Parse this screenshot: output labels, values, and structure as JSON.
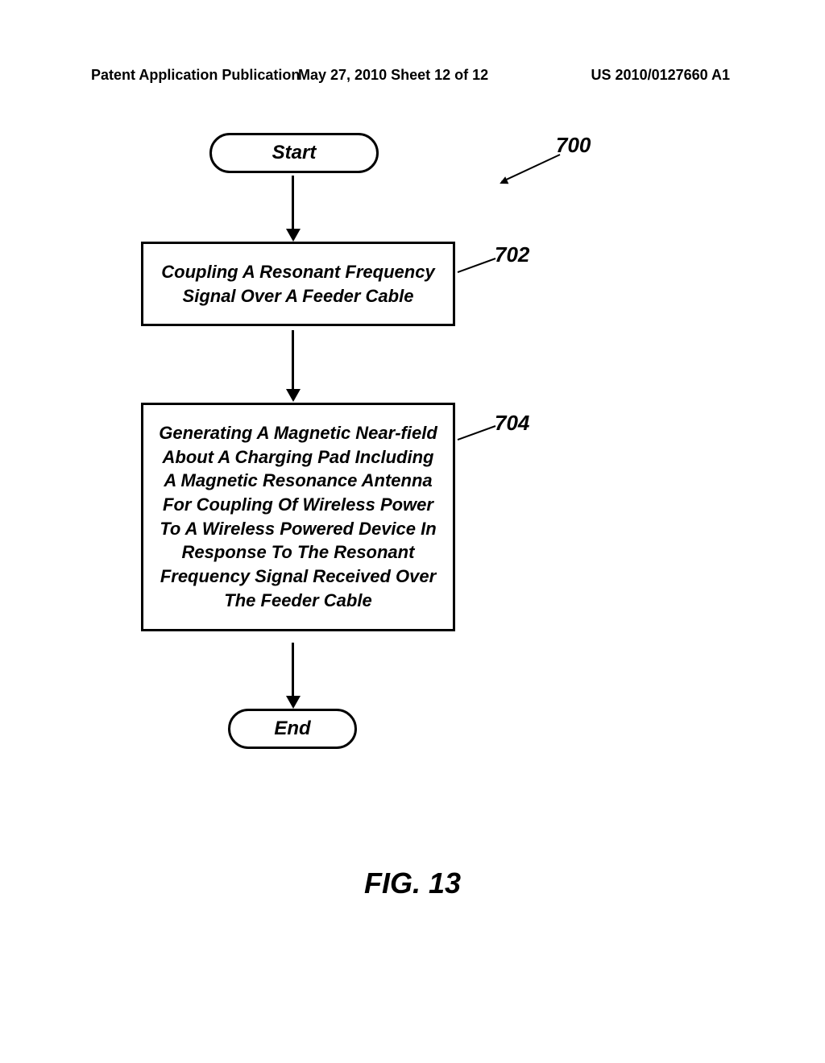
{
  "header": {
    "left": "Patent Application Publication",
    "date": "May 27, 2010  Sheet 12 of 12",
    "pubno": "US 2010/0127660 A1"
  },
  "flowchart": {
    "type": "flowchart",
    "start": "Start",
    "step1": "Coupling A Resonant Frequency Signal Over A Feeder Cable",
    "step2": "Generating A Magnetic Near-field About A Charging Pad Including A Magnetic Resonance Antenna For Coupling Of Wireless Power To A Wireless Powered Device In Response To The Resonant Frequency Signal Received Over The Feeder Cable",
    "end": "End",
    "refs": {
      "main": "700",
      "s1": "702",
      "s2": "704"
    }
  },
  "figure_label": "FIG. 13",
  "style": {
    "border_width": 3,
    "border_color": "#000000",
    "background": "#ffffff",
    "font_family": "Arial",
    "label_fontsize": 22,
    "ref_fontsize": 26,
    "fig_fontsize": 36
  }
}
